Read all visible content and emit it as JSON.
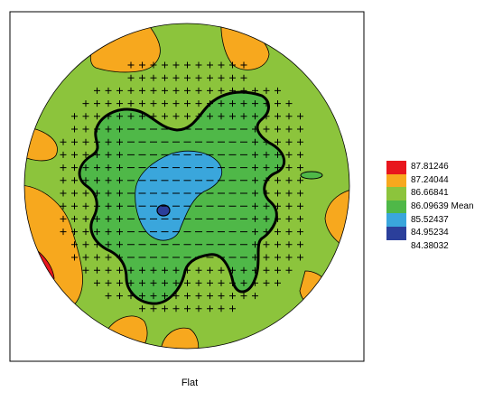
{
  "chart_data": {
    "type": "heatmap",
    "title": "",
    "caption": "Flat",
    "legend": [
      {
        "value": "87.81246",
        "color": "#e8161d"
      },
      {
        "value": "87.24044",
        "color": "#f7a81e"
      },
      {
        "value": "86.66841",
        "color": "#8cc43c"
      },
      {
        "value": "86.09639 Mean",
        "color": "#4fb848"
      },
      {
        "value": "85.52437",
        "color": "#3aa6dc"
      },
      {
        "value": "84.95234",
        "color": "#2b3f9b"
      },
      {
        "value": "84.38032",
        "color": "#ffffff"
      }
    ],
    "legend_placement": "right",
    "grid": false
  }
}
